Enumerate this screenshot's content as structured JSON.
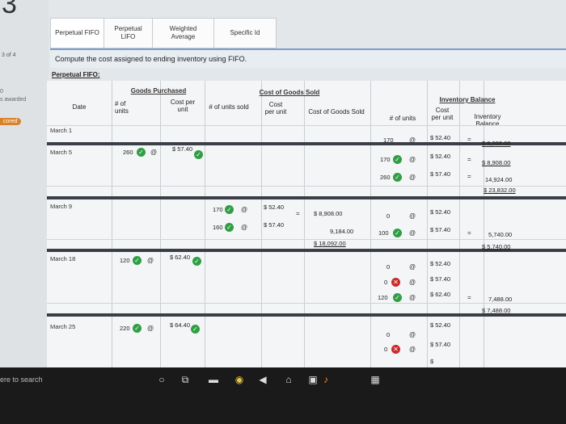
{
  "sidebar": {
    "question_number": "3",
    "question_count": "3 of 4",
    "points_score": "0",
    "points_label": "s awarded",
    "scored_label": "cored"
  },
  "tabs": [
    {
      "label": "Perpetual FIFO",
      "active": true
    },
    {
      "label": "Perpetual LIFO",
      "active": false
    },
    {
      "label": "Weighted Average",
      "active": false
    },
    {
      "label": "Specific Id",
      "active": false
    }
  ],
  "instruction": "Compute the cost assigned to ending inventory using FIFO.",
  "section_title": "Perpetual FIFO:",
  "table": {
    "groups": {
      "purchased": "Goods Purchased",
      "sold": "Cost of Goods Sold",
      "balance": "Inventory Balance"
    },
    "headers": {
      "date": "Date",
      "p_units": "# of units",
      "p_cost": "Cost per unit",
      "s_units": "# of units sold",
      "s_cost": "Cost per unit",
      "s_cogs": "Cost of Goods Sold",
      "b_units": "# of units",
      "b_cost": "Cost per unit",
      "b_balance": "Inventory Balance"
    },
    "dates": [
      "March 1",
      "March 5",
      "March 9",
      "March 18",
      "March 25"
    ],
    "m1": {
      "b_units": "170",
      "b_cost": "$ 52.40",
      "b_balance": "$ 8,908.00"
    },
    "m5": {
      "p_units": "260",
      "p_cost": "$ 57.40",
      "b_units_1": "170",
      "b_cost_1": "$ 52.40",
      "b_bal_1": "$ 8,908.00",
      "b_units_2": "260",
      "b_cost_2": "$ 57.40",
      "b_bal_2": "14,924.00",
      "b_total": "$ 23,832.00"
    },
    "m9": {
      "s_units_1": "170",
      "s_cost_1": "$ 52.40",
      "s_cogs_1": "$ 8,908.00",
      "s_units_2": "160",
      "s_cost_2": "$ 57.40",
      "s_cogs_2": "9,184.00",
      "s_total": "$ 18,092.00",
      "b_units_1": "0",
      "b_cost_1": "$ 52.40",
      "b_units_2": "100",
      "b_cost_2": "$ 57.40",
      "b_bal_2": "5,740.00",
      "b_total": "$ 5,740.00"
    },
    "m18": {
      "p_units": "120",
      "p_cost": "$ 62.40",
      "b_units_1": "0",
      "b_cost_1": "$ 52.40",
      "b_units_2": "0",
      "b_cost_2": "$ 57.40",
      "b_units_3": "120",
      "b_cost_3": "$ 62.40",
      "b_bal_3": "7,488.00",
      "b_total": "$ 7,488.00"
    },
    "m25": {
      "p_units": "220",
      "p_cost": "$ 64.40",
      "b_units_1": "0",
      "b_cost_1": "$ 52.40",
      "b_units_2": "0",
      "b_cost_2": "$ 57.40",
      "b_cost_3": "$"
    },
    "at_symbol": "@",
    "eq_symbol": "="
  },
  "taskbar": {
    "search_placeholder": "ere to search"
  }
}
